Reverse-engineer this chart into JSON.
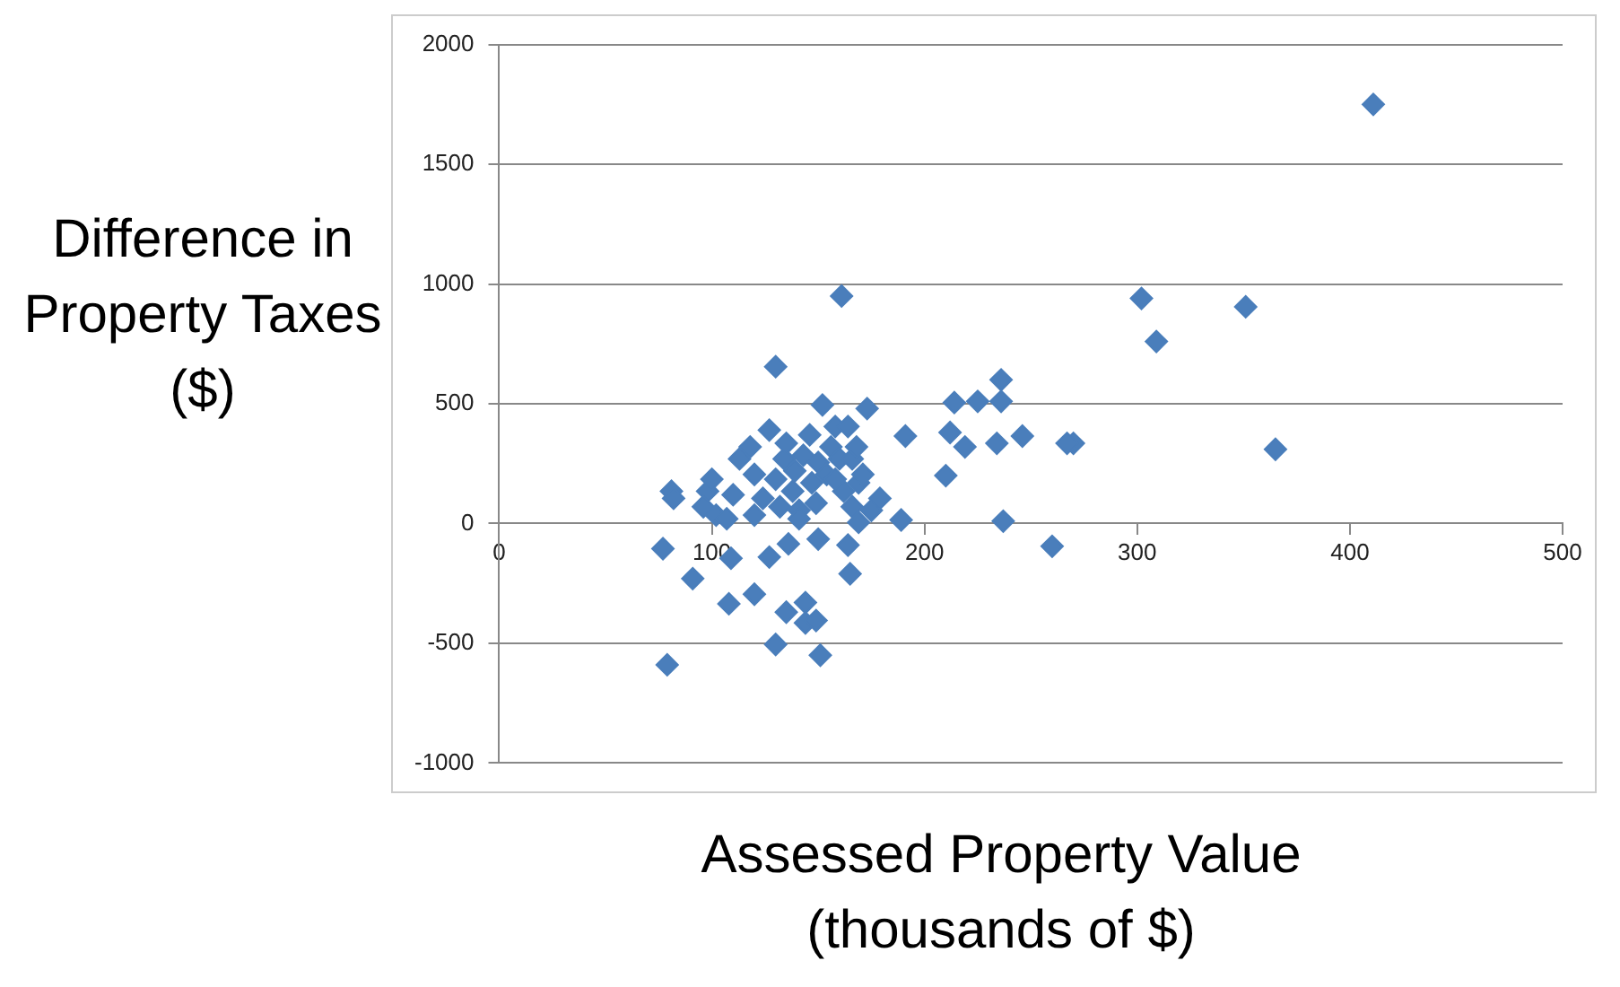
{
  "chart_data": {
    "type": "scatter",
    "xlabel": "Assessed Property Value (thousands of $)",
    "ylabel": "Difference in Property Taxes ($)",
    "xlim": [
      0,
      500
    ],
    "xticks": [
      0,
      100,
      200,
      300,
      400,
      500
    ],
    "ylim": [
      -1000,
      2000
    ],
    "yticks": [
      -1000,
      -500,
      0,
      500,
      1000,
      1500,
      2000
    ],
    "grid": "y",
    "legend": false,
    "marker": "diamond",
    "series": [
      {
        "color": "#4a7ebb",
        "x": [
          411,
          302,
          351,
          309,
          365,
          260,
          237,
          270,
          267,
          246,
          234,
          236,
          236,
          225,
          214,
          212,
          219,
          210,
          191,
          189,
          173,
          161,
          130,
          152,
          79,
          77,
          81,
          82,
          151,
          130,
          135,
          144,
          144,
          149,
          108,
          120,
          91,
          109,
          127,
          136,
          150,
          164,
          165,
          98,
          100,
          96,
          102,
          107,
          110,
          113,
          118,
          120,
          120,
          124,
          127,
          130,
          132,
          134,
          135,
          138,
          139,
          141,
          143,
          146,
          147,
          149,
          150,
          154,
          156,
          158,
          160,
          162,
          164,
          166,
          168,
          169,
          166,
          169,
          175,
          179,
          171,
          158,
          141
        ],
        "values": [
          1750,
          940,
          905,
          760,
          310,
          -95,
          10,
          335,
          335,
          365,
          335,
          600,
          510,
          510,
          505,
          380,
          320,
          200,
          365,
          15,
          480,
          950,
          655,
          495,
          -590,
          -105,
          135,
          105,
          -550,
          -505,
          -370,
          -330,
          -415,
          -405,
          -335,
          -295,
          -230,
          -145,
          -140,
          -85,
          -65,
          -90,
          -210,
          135,
          185,
          70,
          35,
          20,
          120,
          270,
          320,
          205,
          35,
          105,
          390,
          185,
          70,
          270,
          335,
          135,
          220,
          55,
          285,
          370,
          170,
          85,
          255,
          205,
          320,
          405,
          270,
          135,
          405,
          270,
          320,
          170,
          70,
          5,
          55,
          105,
          205,
          185,
          20
        ]
      }
    ]
  }
}
